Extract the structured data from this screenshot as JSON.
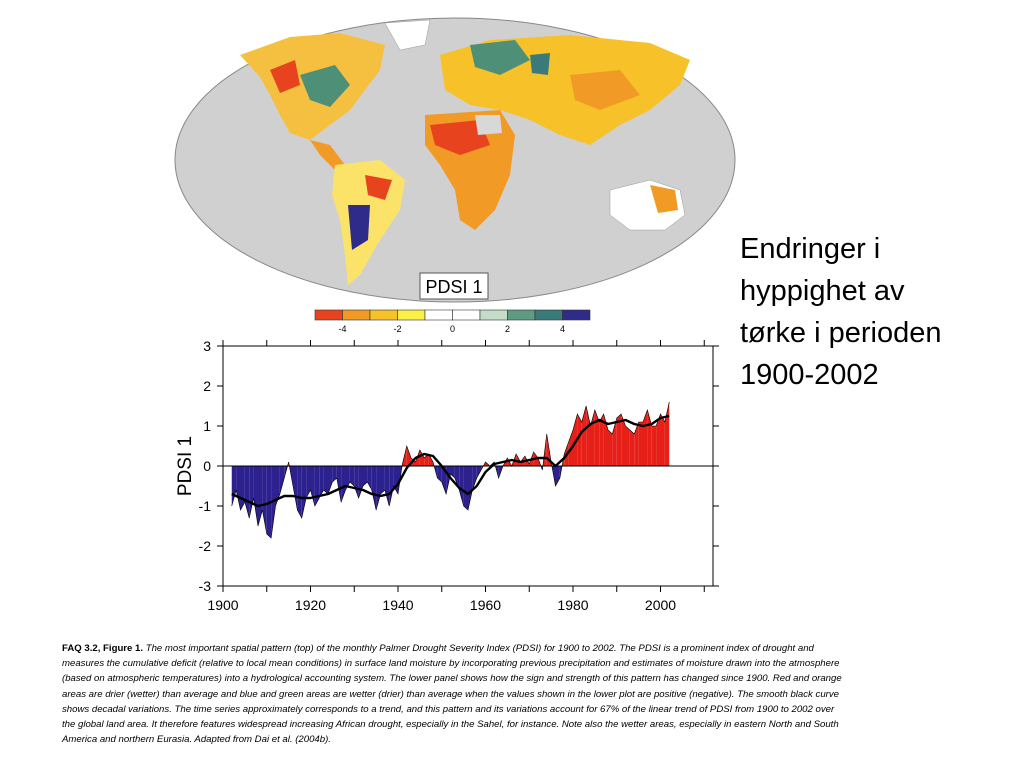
{
  "side_text": {
    "lines": [
      "Endringer i",
      "hyppighet av",
      "tørke i perioden",
      "1900-2002"
    ]
  },
  "map": {
    "label": "PDSI 1",
    "ocean_color": "#d0d0d0"
  },
  "colorbar": {
    "colors": [
      "#e8431f",
      "#f19a25",
      "#f7c229",
      "#fbef4a",
      "#ffffff",
      "#ffffff",
      "#c4dcc8",
      "#5d9c82",
      "#3a7a7a",
      "#2e2b8a"
    ],
    "tick_labels": [
      "-4",
      "-2",
      "0",
      "2",
      "4"
    ]
  },
  "chart_data": {
    "type": "area",
    "ylabel": "PDSI 1",
    "xlim": [
      1900,
      2012
    ],
    "ylim": [
      -3,
      3
    ],
    "x_ticks": [
      "1900",
      "1920",
      "1940",
      "1960",
      "1980",
      "2000"
    ],
    "y_ticks": [
      "3",
      "2",
      "1",
      "0",
      "-1",
      "-2",
      "-3"
    ],
    "positive_color": "#e62019",
    "negative_color": "#2d2190",
    "annual": {
      "x": [
        1902,
        1903,
        1904,
        1905,
        1906,
        1907,
        1908,
        1909,
        1910,
        1911,
        1912,
        1913,
        1914,
        1915,
        1916,
        1917,
        1918,
        1919,
        1920,
        1921,
        1922,
        1923,
        1924,
        1925,
        1926,
        1927,
        1928,
        1929,
        1930,
        1931,
        1932,
        1933,
        1934,
        1935,
        1936,
        1937,
        1938,
        1939,
        1940,
        1941,
        1942,
        1943,
        1944,
        1945,
        1946,
        1947,
        1948,
        1949,
        1950,
        1951,
        1952,
        1953,
        1954,
        1955,
        1956,
        1957,
        1958,
        1959,
        1960,
        1961,
        1962,
        1963,
        1964,
        1965,
        1966,
        1967,
        1968,
        1969,
        1970,
        1971,
        1972,
        1973,
        1974,
        1975,
        1976,
        1977,
        1978,
        1979,
        1980,
        1981,
        1982,
        1983,
        1984,
        1985,
        1986,
        1987,
        1988,
        1989,
        1990,
        1991,
        1992,
        1993,
        1994,
        1995,
        1996,
        1997,
        1998,
        1999,
        2000,
        2001,
        2002
      ],
      "y": [
        -1.0,
        -0.6,
        -1.1,
        -0.9,
        -1.3,
        -0.8,
        -1.5,
        -1.1,
        -1.7,
        -1.8,
        -1.0,
        -0.7,
        -0.3,
        0.1,
        -0.5,
        -1.1,
        -1.3,
        -0.8,
        -0.6,
        -1.0,
        -0.8,
        -0.6,
        -0.7,
        -0.4,
        -0.3,
        -0.9,
        -0.6,
        -0.4,
        -0.5,
        -0.8,
        -0.5,
        -0.4,
        -0.6,
        -1.1,
        -0.7,
        -0.6,
        -1.0,
        -0.5,
        -0.7,
        0.05,
        0.5,
        0.2,
        0.1,
        0.4,
        0.2,
        0.3,
        0.1,
        -0.3,
        -0.4,
        -0.7,
        -0.2,
        -0.3,
        -0.6,
        -1.0,
        -1.1,
        -0.6,
        -0.3,
        -0.1,
        0.1,
        0.0,
        0.1,
        -0.3,
        0.0,
        0.2,
        0.0,
        0.3,
        0.1,
        0.25,
        0.05,
        0.35,
        0.2,
        -0.1,
        0.8,
        0.1,
        -0.5,
        -0.3,
        0.3,
        0.6,
        0.9,
        1.3,
        1.1,
        1.5,
        1.0,
        1.4,
        1.1,
        1.3,
        0.9,
        0.8,
        1.2,
        1.3,
        1.0,
        0.9,
        0.8,
        1.1,
        1.1,
        1.4,
        1.0,
        1.0,
        1.3,
        1.1,
        1.6
      ]
    },
    "smooth": {
      "x": [
        1902,
        1904,
        1906,
        1908,
        1910,
        1912,
        1914,
        1916,
        1918,
        1920,
        1922,
        1924,
        1926,
        1928,
        1930,
        1932,
        1934,
        1936,
        1938,
        1940,
        1942,
        1944,
        1946,
        1948,
        1950,
        1952,
        1954,
        1956,
        1958,
        1960,
        1962,
        1964,
        1966,
        1968,
        1970,
        1972,
        1974,
        1976,
        1978,
        1980,
        1982,
        1984,
        1986,
        1988,
        1990,
        1992,
        1994,
        1996,
        1998,
        2000,
        2002
      ],
      "y": [
        -0.7,
        -0.8,
        -0.9,
        -1.0,
        -0.95,
        -0.85,
        -0.75,
        -0.75,
        -0.8,
        -0.8,
        -0.75,
        -0.7,
        -0.6,
        -0.5,
        -0.55,
        -0.6,
        -0.7,
        -0.75,
        -0.7,
        -0.45,
        -0.05,
        0.2,
        0.3,
        0.25,
        0.0,
        -0.3,
        -0.55,
        -0.7,
        -0.5,
        -0.15,
        0.05,
        0.1,
        0.15,
        0.1,
        0.15,
        0.2,
        0.2,
        0.0,
        0.2,
        0.5,
        0.85,
        1.05,
        1.15,
        1.05,
        1.1,
        1.15,
        1.05,
        1.0,
        1.05,
        1.2,
        1.25
      ]
    }
  },
  "caption": {
    "lead": "FAQ 3.2, Figure 1.",
    "text": "The most important spatial pattern (top) of the monthly Palmer Drought Severity Index (PDSI) for 1900 to 2002. The PDSI is a prominent index of drought and measures the cumulative deficit (relative to local mean conditions) in surface land moisture by incorporating previous precipitation and estimates of moisture drawn into the atmosphere (based on atmospheric temperatures) into a hydrological accounting system. The lower panel shows how the sign and strength of this pattern has changed since 1900. Red and orange areas are drier (wetter) than average and blue and green areas are wetter (drier) than average when the values shown in the lower plot are positive (negative). The smooth black curve shows decadal variations. The time series approximately corresponds to a trend, and this pattern and its variations account for 67% of the linear trend of PDSI from 1900 to 2002 over the global land area. It therefore features widespread increasing African drought, especially in the Sahel, for instance. Note also the wetter areas, especially in eastern North and South America and northern Eurasia. Adapted from Dai et al. (2004b)."
  }
}
